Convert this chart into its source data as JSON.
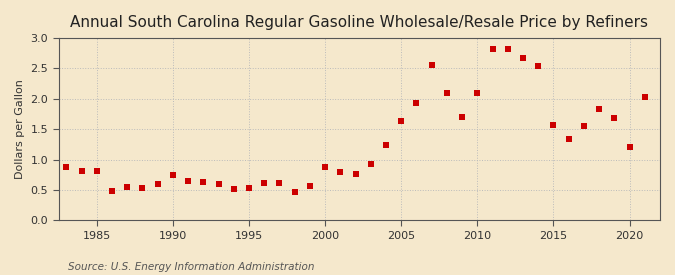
{
  "title": "Annual South Carolina Regular Gasoline Wholesale/Resale Price by Refiners",
  "ylabel": "Dollars per Gallon",
  "source": "Source: U.S. Energy Information Administration",
  "fig_background_color": "#f5e8cc",
  "plot_background_color": "#f5e8cc",
  "marker_color": "#cc0000",
  "xlim": [
    1982.5,
    2022
  ],
  "ylim": [
    0.0,
    3.0
  ],
  "yticks": [
    0.0,
    0.5,
    1.0,
    1.5,
    2.0,
    2.5,
    3.0
  ],
  "xticks": [
    1985,
    1990,
    1995,
    2000,
    2005,
    2010,
    2015,
    2020
  ],
  "years": [
    1983,
    1984,
    1985,
    1986,
    1987,
    1988,
    1989,
    1990,
    1991,
    1992,
    1993,
    1994,
    1995,
    1996,
    1997,
    1998,
    1999,
    2000,
    2001,
    2002,
    2003,
    2004,
    2005,
    2006,
    2007,
    2008,
    2009,
    2010,
    2011,
    2012,
    2013,
    2014,
    2015,
    2016,
    2017,
    2018,
    2019,
    2020,
    2021
  ],
  "values": [
    0.88,
    0.82,
    0.81,
    0.49,
    0.55,
    0.53,
    0.6,
    0.75,
    0.65,
    0.63,
    0.59,
    0.52,
    0.54,
    0.62,
    0.61,
    0.47,
    0.57,
    0.88,
    0.79,
    0.77,
    0.92,
    1.24,
    1.63,
    1.93,
    2.56,
    2.1,
    1.7,
    2.1,
    2.82,
    2.82,
    2.67,
    2.54,
    1.57,
    1.34,
    1.56,
    1.83,
    1.68,
    1.2,
    2.03
  ],
  "grid_color": "#bbbbbb",
  "spine_color": "#555555",
  "tick_label_color": "#333333",
  "title_fontsize": 11,
  "ylabel_fontsize": 8,
  "tick_fontsize": 8,
  "source_fontsize": 7.5,
  "marker_size": 4
}
